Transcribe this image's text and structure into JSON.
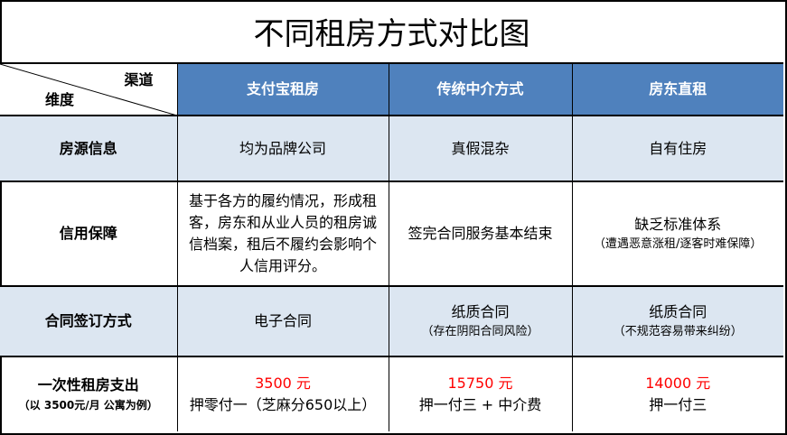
{
  "title": "不同租房方式对比图",
  "header": {
    "corner_channel": "渠道",
    "corner_dimension": "维度",
    "columns": [
      "支付宝租房",
      "传统中介方式",
      "房东直租"
    ]
  },
  "rows": [
    {
      "label": "房源信息",
      "cells": [
        {
          "main": "均为品牌公司"
        },
        {
          "main": "真假混杂"
        },
        {
          "main": "自有住房"
        }
      ]
    },
    {
      "label": "信用保障",
      "cells": [
        {
          "main": "基于各方的履约情况，形成租客，房东和从业人员的租房诚信档案，租后不履约会影响个人信用评分。"
        },
        {
          "main": "签完合同服务基本结束"
        },
        {
          "main": "缺乏标准体系",
          "note": "（遭遇恶意涨租/逐客时难保障）"
        }
      ]
    },
    {
      "label": "合同签订方式",
      "cells": [
        {
          "main": "电子合同"
        },
        {
          "main": "纸质合同",
          "note": "（存在阴阳合同风险）"
        },
        {
          "main": "纸质合同",
          "note": "（不规范容易带来纠纷）"
        }
      ]
    },
    {
      "label": "一次性租房支出",
      "sublabel": "（以 3500元/月 公寓为例）",
      "cells": [
        {
          "amount": "3500 元",
          "main": "押零付一（芝麻分650以上）"
        },
        {
          "amount": "15750 元",
          "main": "押一付三 + 中介费"
        },
        {
          "amount": "14000 元",
          "main": "押一付三"
        }
      ]
    }
  ],
  "colors": {
    "header_bg": "#4f81bd",
    "shade_bg": "#dce6f1",
    "amount": "#ff0000"
  }
}
